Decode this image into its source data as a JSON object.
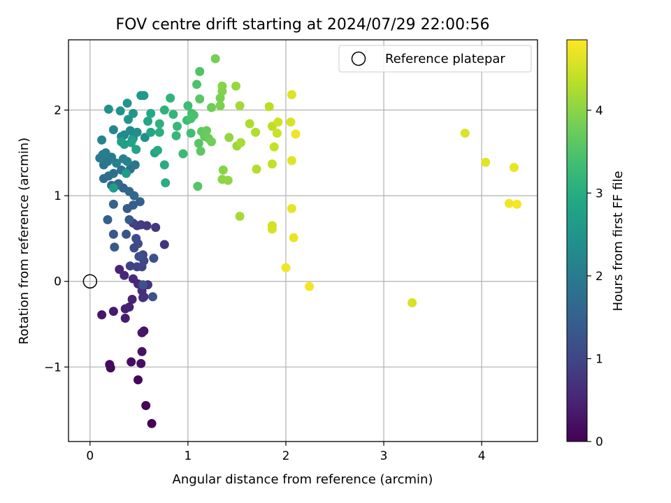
{
  "chart_data": {
    "type": "scatter",
    "title": "FOV centre drift starting at 2024/07/29 22:00:56",
    "xlabel": "Angular distance from reference (arcmin)",
    "ylabel": "Rotation from reference (arcmin)",
    "xlim": [
      -0.22,
      4.57
    ],
    "ylim": [
      -1.87,
      2.82
    ],
    "xticks": [
      0,
      1,
      2,
      3,
      4
    ],
    "yticks": [
      -1,
      0,
      1,
      2
    ],
    "xtick_labels": [
      "0",
      "1",
      "2",
      "3",
      "4"
    ],
    "ytick_labels": [
      "−1",
      "0",
      "1",
      "2"
    ],
    "grid": true,
    "colorbar": {
      "label": "Hours from first FF file",
      "colormap": "viridis",
      "range": [
        0,
        4.85
      ],
      "ticks": [
        0,
        1,
        2,
        3,
        4
      ],
      "tick_labels": [
        "0",
        "1",
        "2",
        "3",
        "4"
      ]
    },
    "legend": {
      "placement": "top-right",
      "entries": [
        "Reference platepar"
      ]
    },
    "reference_point": {
      "x": 0,
      "y": 0,
      "marker": "open-circle"
    },
    "points_columns": [
      "x",
      "y",
      "hours"
    ],
    "points": [
      [
        0.63,
        -1.66,
        0.02
      ],
      [
        0.57,
        -1.45,
        0.05
      ],
      [
        0.49,
        -1.15,
        0.08
      ],
      [
        0.21,
        -1.01,
        0.11
      ],
      [
        0.2,
        -0.97,
        0.14
      ],
      [
        0.42,
        -0.94,
        0.17
      ],
      [
        0.52,
        -0.96,
        0.2
      ],
      [
        0.53,
        -0.82,
        0.23
      ],
      [
        0.55,
        -0.58,
        0.26
      ],
      [
        0.53,
        -0.6,
        0.29
      ],
      [
        0.12,
        -0.39,
        0.32
      ],
      [
        0.24,
        -0.35,
        0.35
      ],
      [
        0.36,
        -0.43,
        0.38
      ],
      [
        0.36,
        -0.32,
        0.41
      ],
      [
        0.4,
        -0.3,
        0.44
      ],
      [
        0.43,
        -0.21,
        0.47
      ],
      [
        0.3,
        0.14,
        0.5
      ],
      [
        0.35,
        0.07,
        0.53
      ],
      [
        0.44,
        0.03,
        0.56
      ],
      [
        0.49,
        -0.03,
        0.59
      ],
      [
        0.53,
        -0.11,
        0.62
      ],
      [
        0.55,
        -0.18,
        0.65
      ],
      [
        0.54,
        -0.19,
        0.68
      ],
      [
        0.59,
        -0.04,
        0.71
      ],
      [
        0.76,
        0.43,
        0.74
      ],
      [
        0.67,
        0.63,
        0.77
      ],
      [
        0.58,
        0.65,
        0.8
      ],
      [
        0.52,
        0.66,
        0.83
      ],
      [
        0.48,
        0.65,
        0.86
      ],
      [
        0.44,
        0.68,
        0.89
      ],
      [
        0.41,
        0.18,
        0.92
      ],
      [
        0.48,
        0.17,
        0.95
      ],
      [
        0.53,
        0.17,
        0.98
      ],
      [
        0.55,
        0.24,
        1.01
      ],
      [
        0.54,
        0.31,
        1.04
      ],
      [
        0.49,
        0.44,
        1.07
      ],
      [
        0.45,
        0.39,
        1.1
      ],
      [
        0.47,
        0.5,
        1.13
      ],
      [
        0.5,
        0.29,
        1.16
      ],
      [
        0.65,
        0.27,
        1.19
      ],
      [
        0.64,
        -0.18,
        1.22
      ],
      [
        0.54,
        -0.04,
        1.25
      ],
      [
        0.37,
        0.55,
        1.28
      ],
      [
        0.24,
        0.55,
        1.31
      ],
      [
        0.25,
        0.4,
        1.34
      ],
      [
        0.4,
        0.72,
        1.37
      ],
      [
        0.38,
        0.85,
        1.4
      ],
      [
        0.44,
        0.89,
        1.43
      ],
      [
        0.51,
        0.93,
        1.46
      ],
      [
        0.18,
        0.72,
        1.49
      ],
      [
        0.24,
        0.9,
        1.52
      ],
      [
        0.34,
        1.09,
        1.55
      ],
      [
        0.29,
        1.14,
        1.58
      ],
      [
        0.4,
        1.05,
        1.61
      ],
      [
        0.45,
        1.0,
        1.64
      ],
      [
        0.22,
        1.12,
        1.67
      ],
      [
        0.27,
        1.12,
        1.7
      ],
      [
        0.14,
        1.2,
        1.73
      ],
      [
        0.19,
        1.23,
        1.76
      ],
      [
        0.24,
        1.26,
        1.79
      ],
      [
        0.32,
        1.3,
        1.82
      ],
      [
        0.41,
        1.31,
        1.85
      ],
      [
        0.46,
        1.36,
        1.88
      ],
      [
        0.14,
        1.36,
        1.91
      ],
      [
        0.18,
        1.4,
        1.94
      ],
      [
        0.22,
        1.45,
        1.97
      ],
      [
        0.1,
        1.44,
        2.0
      ],
      [
        0.16,
        1.5,
        2.03
      ],
      [
        0.13,
        1.48,
        2.06
      ],
      [
        0.27,
        1.38,
        2.09
      ],
      [
        0.34,
        1.43,
        2.12
      ],
      [
        0.38,
        1.4,
        2.15
      ],
      [
        0.12,
        1.65,
        2.18
      ],
      [
        0.24,
        1.77,
        2.21
      ],
      [
        0.32,
        1.69,
        2.24
      ],
      [
        0.35,
        1.71,
        2.27
      ],
      [
        0.41,
        1.76,
        2.3
      ],
      [
        0.44,
        1.67,
        2.33
      ],
      [
        0.48,
        1.74,
        2.36
      ],
      [
        0.56,
        1.68,
        2.39
      ],
      [
        0.19,
        2.01,
        2.42
      ],
      [
        0.31,
        1.99,
        2.45
      ],
      [
        0.38,
        2.08,
        2.48
      ],
      [
        0.39,
        1.89,
        2.51
      ],
      [
        0.44,
        1.96,
        2.54
      ],
      [
        0.52,
        2.17,
        2.57
      ],
      [
        0.55,
        2.17,
        2.6
      ],
      [
        0.37,
        1.26,
        2.63
      ],
      [
        0.24,
        1.09,
        2.66
      ],
      [
        0.32,
        1.63,
        2.69
      ],
      [
        0.35,
        1.6,
        2.72
      ],
      [
        0.43,
        1.65,
        2.75
      ],
      [
        0.47,
        1.54,
        2.78
      ],
      [
        0.42,
        1.62,
        2.81
      ],
      [
        0.66,
        1.5,
        2.84
      ],
      [
        0.59,
        1.87,
        2.87
      ],
      [
        0.62,
        1.74,
        2.9
      ],
      [
        0.62,
        1.96,
        2.93
      ],
      [
        0.69,
        1.53,
        2.96
      ],
      [
        0.76,
        1.36,
        2.99
      ],
      [
        0.77,
        1.15,
        3.02
      ],
      [
        0.71,
        1.74,
        3.05
      ],
      [
        0.71,
        1.84,
        3.08
      ],
      [
        0.76,
        2.0,
        3.11
      ],
      [
        0.82,
        2.14,
        3.14
      ],
      [
        0.85,
        1.95,
        3.17
      ],
      [
        0.88,
        1.7,
        3.2
      ],
      [
        0.89,
        1.81,
        3.23
      ],
      [
        0.95,
        1.49,
        3.26
      ],
      [
        0.99,
        1.88,
        3.29
      ],
      [
        1.0,
        2.05,
        3.32
      ],
      [
        1.03,
        1.73,
        3.35
      ],
      [
        1.04,
        1.96,
        3.38
      ],
      [
        1.03,
        1.9,
        3.41
      ],
      [
        1.06,
        1.94,
        3.44
      ],
      [
        1.09,
        2.3,
        3.47
      ],
      [
        1.12,
        2.45,
        3.5
      ],
      [
        1.1,
        1.11,
        3.53
      ],
      [
        1.11,
        1.61,
        3.56
      ],
      [
        1.12,
        2.13,
        3.59
      ],
      [
        1.13,
        1.52,
        3.62
      ],
      [
        1.14,
        1.75,
        3.65
      ],
      [
        1.17,
        1.69,
        3.68
      ],
      [
        1.19,
        1.76,
        3.71
      ],
      [
        1.21,
        1.67,
        3.74
      ],
      [
        1.24,
        2.03,
        3.77
      ],
      [
        1.24,
        1.63,
        3.8
      ],
      [
        1.28,
        2.6,
        3.83
      ],
      [
        1.33,
        2.14,
        3.86
      ],
      [
        1.33,
        2.05,
        3.89
      ],
      [
        1.35,
        2.22,
        3.92
      ],
      [
        1.35,
        2.28,
        3.95
      ],
      [
        1.36,
        1.3,
        3.98
      ],
      [
        1.35,
        1.19,
        4.01
      ],
      [
        1.41,
        1.18,
        4.04
      ],
      [
        1.42,
        1.68,
        4.07
      ],
      [
        1.49,
        2.28,
        4.1
      ],
      [
        1.5,
        1.58,
        4.13
      ],
      [
        1.53,
        2.05,
        4.16
      ],
      [
        1.53,
        0.76,
        4.19
      ],
      [
        1.54,
        1.62,
        4.22
      ],
      [
        1.63,
        1.84,
        4.25
      ],
      [
        1.69,
        1.74,
        4.28
      ],
      [
        1.7,
        1.31,
        4.31
      ],
      [
        1.83,
        2.04,
        4.34
      ],
      [
        1.86,
        1.81,
        4.37
      ],
      [
        1.86,
        1.37,
        4.4
      ],
      [
        1.88,
        1.57,
        4.43
      ],
      [
        1.91,
        1.73,
        4.46
      ],
      [
        1.92,
        1.86,
        4.49
      ],
      [
        1.86,
        0.65,
        4.52
      ],
      [
        1.86,
        0.61,
        4.55
      ],
      [
        2.05,
        1.86,
        4.58
      ],
      [
        2.06,
        2.18,
        4.61
      ],
      [
        2.06,
        1.41,
        4.64
      ],
      [
        2.06,
        0.85,
        4.67
      ],
      [
        2.08,
        0.51,
        4.7
      ],
      [
        2.1,
        1.72,
        4.73
      ],
      [
        2.0,
        0.16,
        4.76
      ],
      [
        2.24,
        -0.06,
        4.79
      ],
      [
        3.29,
        -0.25,
        4.55
      ],
      [
        3.83,
        1.73,
        4.6
      ],
      [
        4.04,
        1.39,
        4.65
      ],
      [
        4.33,
        1.33,
        4.7
      ],
      [
        4.28,
        0.91,
        4.75
      ],
      [
        4.36,
        0.9,
        4.8
      ]
    ]
  }
}
